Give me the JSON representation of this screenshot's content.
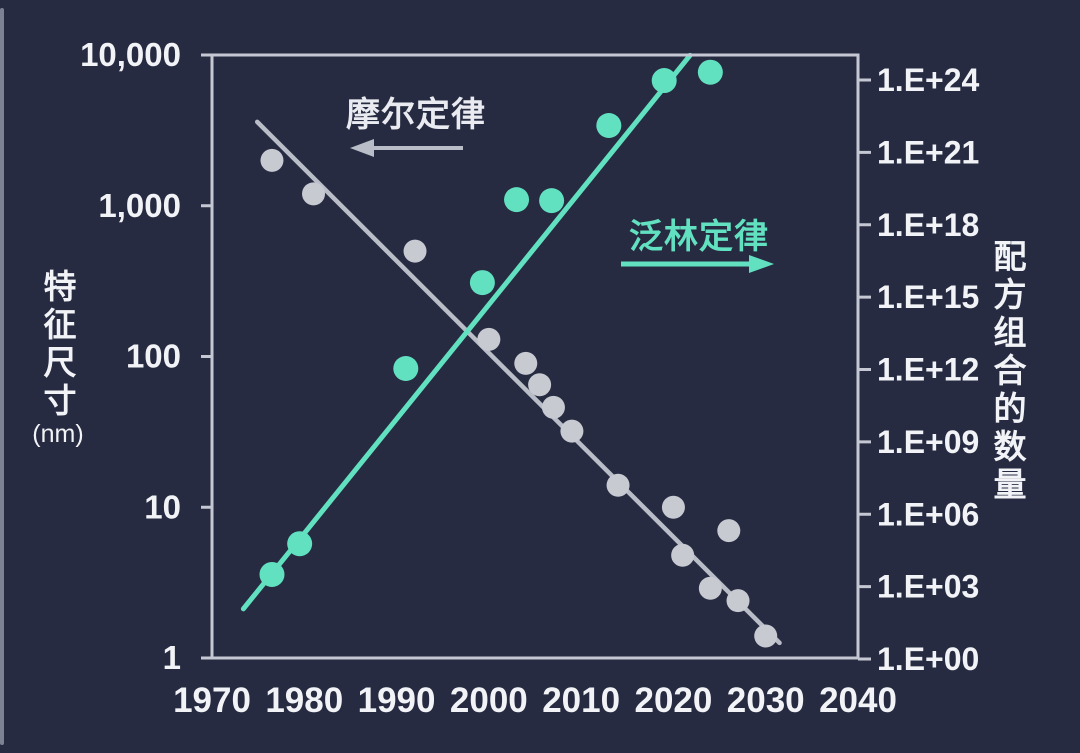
{
  "page": {
    "background": "#262b41",
    "text_color": "#f2f3f7",
    "axis_color": "#c5c8d2"
  },
  "annotations": {
    "moore_label": "摩尔定律",
    "moore_arrow_direction": "left",
    "lam_label": "泛林定律",
    "lam_arrow_direction": "right"
  },
  "chart_data": {
    "type": "scatter",
    "title": "",
    "grid": false,
    "x_axis": {
      "ticks": [
        1970,
        1980,
        1990,
        2000,
        2010,
        2020,
        2030,
        2040
      ],
      "range": [
        1970,
        2040
      ]
    },
    "y_left": {
      "title": "特征尺寸",
      "unit": "(nm)",
      "scale": "log",
      "tick_labels": [
        "10,000",
        "1,000",
        "100",
        "10",
        "1"
      ],
      "tick_values": [
        10000,
        1000,
        100,
        10,
        1
      ],
      "range": [
        1,
        10000
      ]
    },
    "y_right": {
      "title": "配方组合的数量",
      "scale": "log",
      "tick_labels": [
        "1.E+24",
        "1.E+21",
        "1.E+18",
        "1.E+15",
        "1.E+12",
        "1.E+09",
        "1.E+06",
        "1.E+03",
        "1.E+00"
      ],
      "tick_values": [
        1e+24,
        1e+21,
        1e+18,
        1000000000000000.0,
        1000000000000.0,
        1000000000.0,
        1000000.0,
        1000.0,
        1
      ],
      "range": [
        1,
        1e+25
      ]
    },
    "series": [
      {
        "name": "摩尔定律",
        "axis": "left",
        "marker_color": "#c8cad2",
        "line_color": "#b9bdc7",
        "arrow": "left",
        "points": [
          [
            1976.5,
            2000
          ],
          [
            1981,
            1200
          ],
          [
            1992,
            500
          ],
          [
            2000,
            130
          ],
          [
            2004,
            90
          ],
          [
            2005.5,
            65
          ],
          [
            2007,
            46
          ],
          [
            2009,
            32
          ],
          [
            2014,
            14
          ],
          [
            2020,
            10
          ],
          [
            2026,
            7
          ],
          [
            2021,
            4.8
          ],
          [
            2024,
            2.9
          ],
          [
            2027,
            2.4
          ],
          [
            2030,
            1.4
          ]
        ],
        "trend": [
          [
            1974.9,
            3600
          ],
          [
            2031.5,
            1.26
          ]
        ]
      },
      {
        "name": "泛林定律",
        "axis": "right",
        "marker_color": "#62e1c1",
        "line_color": "#62e1c1",
        "arrow": "right",
        "points": [
          [
            1976.5,
            3200.0
          ],
          [
            1979.5,
            60000.0
          ],
          [
            1991,
            1100000000000.0
          ],
          [
            1999.3,
            4000000000000000.0
          ],
          [
            2003,
            1.1e+19
          ],
          [
            2006.8,
            1e+19
          ],
          [
            2013,
            1.3e+22
          ],
          [
            2019,
            9.5e+23
          ],
          [
            2024,
            2.1e+24
          ]
        ],
        "trend": [
          [
            1973.4,
            120
          ],
          [
            2021.8,
            1.05e+25
          ]
        ]
      }
    ]
  }
}
